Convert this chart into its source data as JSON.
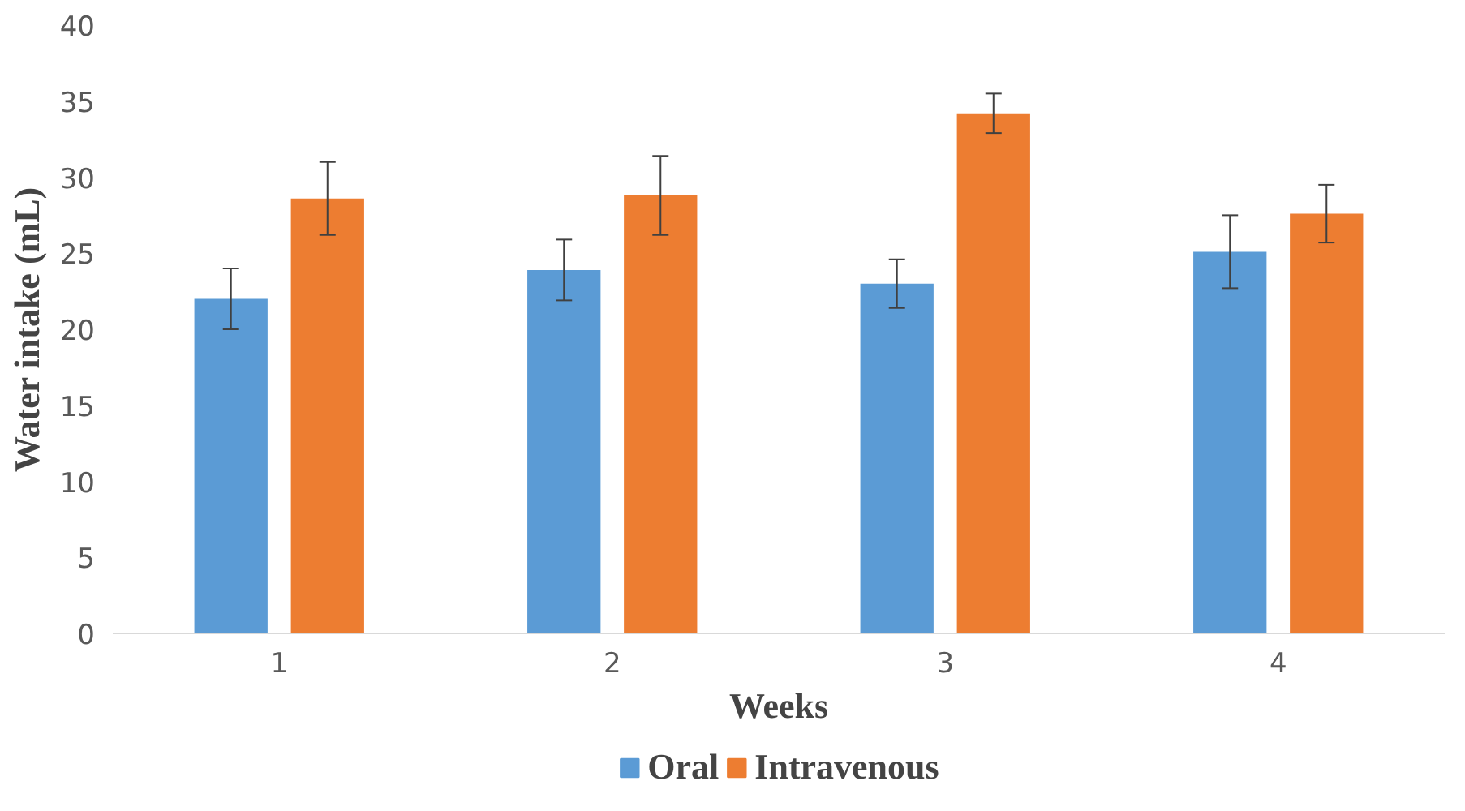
{
  "chart_data": {
    "type": "bar",
    "xlabel": "Weeks",
    "ylabel": "Water intake (mL)",
    "categories": [
      "1",
      "2",
      "3",
      "4"
    ],
    "series": [
      {
        "name": "Oral",
        "color": "#5b9bd5",
        "values": [
          22,
          23.9,
          23,
          25.1
        ],
        "errors": [
          2,
          2,
          1.6,
          2.4
        ]
      },
      {
        "name": "Intravenous",
        "color": "#ed7d31",
        "values": [
          28.6,
          28.8,
          34.2,
          27.6
        ],
        "errors": [
          2.4,
          2.6,
          1.3,
          1.9
        ]
      }
    ],
    "ylim": [
      0,
      40
    ],
    "yticks": [
      0,
      5,
      10,
      15,
      20,
      25,
      30,
      35,
      40
    ],
    "grid": false,
    "legend": "bottom"
  }
}
